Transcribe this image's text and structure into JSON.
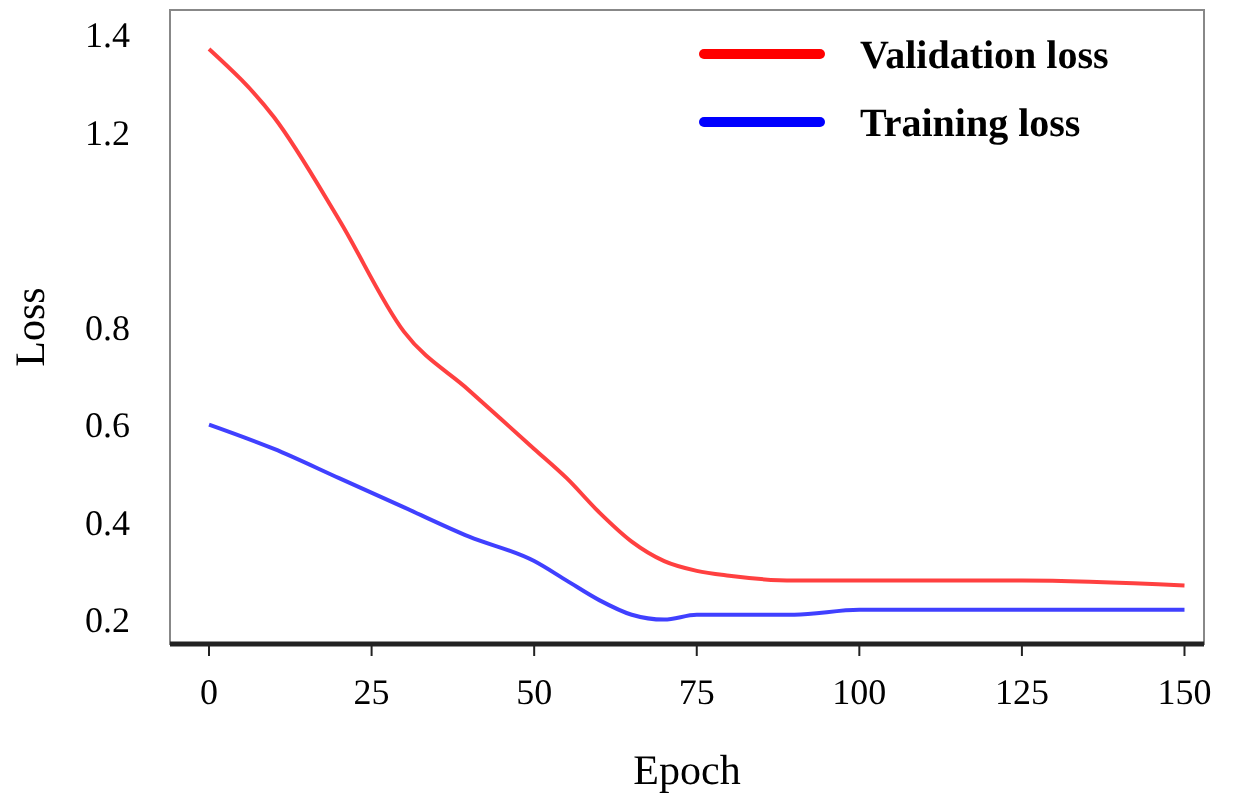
{
  "chart_data": {
    "type": "line",
    "xlabel": "Epoch",
    "ylabel": "Loss",
    "x": [
      0,
      10,
      20,
      30,
      40,
      50,
      55,
      60,
      65,
      70,
      75,
      80,
      90,
      100,
      125,
      150
    ],
    "series": [
      {
        "name": "Validation loss",
        "color": "#ff0000",
        "values": [
          1.37,
          1.23,
          1.02,
          0.79,
          0.67,
          0.55,
          0.49,
          0.42,
          0.36,
          0.32,
          0.3,
          0.29,
          0.28,
          0.28,
          0.28,
          0.27
        ]
      },
      {
        "name": "Training loss",
        "color": "#0000ff",
        "values": [
          0.6,
          0.55,
          0.49,
          0.43,
          0.37,
          0.32,
          0.28,
          0.24,
          0.21,
          0.2,
          0.21,
          0.21,
          0.21,
          0.22,
          0.22,
          0.22
        ]
      }
    ],
    "xlim": [
      -6,
      153
    ],
    "xticks": [
      0,
      25,
      50,
      75,
      100,
      125,
      150
    ],
    "ylim": [
      0.15,
      1.45
    ],
    "yticks": [
      0.2,
      0.4,
      0.6,
      0.8,
      1.2,
      1.4
    ],
    "grid": false,
    "legend": "top right",
    "line_style": "solid",
    "marker": "none"
  }
}
